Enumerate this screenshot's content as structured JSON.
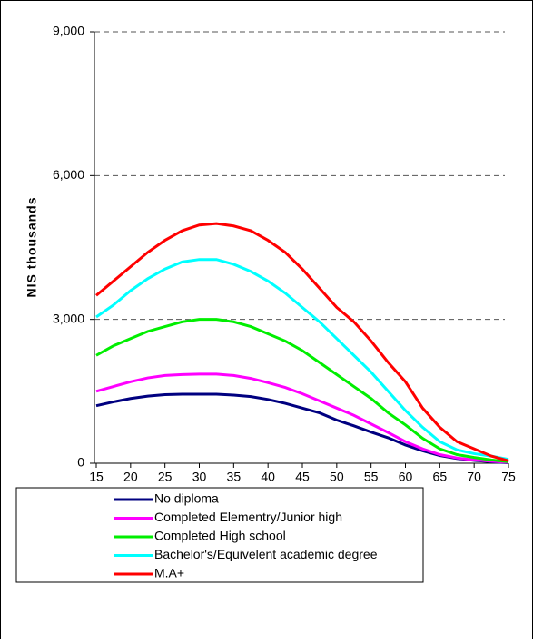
{
  "chart_data": {
    "type": "line",
    "y_label": "NIS thousands",
    "x": [
      15,
      17.5,
      20,
      22.5,
      25,
      27.5,
      30,
      32.5,
      35,
      37.5,
      40,
      42.5,
      45,
      47.5,
      50,
      52.5,
      55,
      57.5,
      60,
      62.5,
      65,
      67.5,
      70,
      72.5,
      75
    ],
    "xlim": [
      15,
      75
    ],
    "xticks": [
      15,
      20,
      25,
      30,
      35,
      40,
      45,
      50,
      55,
      60,
      65,
      70,
      75
    ],
    "ylim": [
      0,
      9000
    ],
    "yticks": [
      {
        "value": 0,
        "label": "0"
      },
      {
        "value": 3000,
        "label": "3,000"
      },
      {
        "value": 6000,
        "label": "6,000"
      },
      {
        "value": 9000,
        "label": "9,000"
      }
    ],
    "grid": true,
    "series": [
      {
        "name": "No diploma",
        "color": "#000080",
        "values": [
          1200,
          1280,
          1350,
          1400,
          1430,
          1440,
          1440,
          1440,
          1420,
          1390,
          1330,
          1250,
          1150,
          1050,
          900,
          780,
          650,
          530,
          380,
          260,
          160,
          100,
          60,
          30,
          10
        ]
      },
      {
        "name": "Completed Elementry/Junior high",
        "color": "#ff00ff",
        "values": [
          1500,
          1600,
          1700,
          1780,
          1830,
          1850,
          1860,
          1860,
          1830,
          1770,
          1680,
          1580,
          1450,
          1300,
          1150,
          1000,
          820,
          640,
          450,
          300,
          180,
          110,
          70,
          40,
          20
        ]
      },
      {
        "name": "Completed High school",
        "color": "#00ee00",
        "values": [
          2250,
          2450,
          2600,
          2750,
          2850,
          2950,
          3000,
          3000,
          2950,
          2850,
          2700,
          2550,
          2350,
          2100,
          1850,
          1600,
          1350,
          1050,
          800,
          520,
          300,
          180,
          120,
          70,
          30
        ]
      },
      {
        "name": "Bachelor's/Equivelent academic degree",
        "color": "#00ffff",
        "values": [
          3050,
          3300,
          3600,
          3850,
          4050,
          4200,
          4250,
          4250,
          4150,
          4000,
          3800,
          3550,
          3250,
          2950,
          2600,
          2250,
          1900,
          1500,
          1100,
          750,
          450,
          280,
          200,
          150,
          80
        ]
      },
      {
        "name": "M.A+",
        "color": "#ff0000",
        "values": [
          3500,
          3800,
          4100,
          4400,
          4650,
          4850,
          4970,
          5000,
          4950,
          4850,
          4650,
          4400,
          4050,
          3650,
          3250,
          2950,
          2550,
          2100,
          1700,
          1150,
          750,
          450,
          300,
          150,
          50
        ]
      }
    ]
  }
}
